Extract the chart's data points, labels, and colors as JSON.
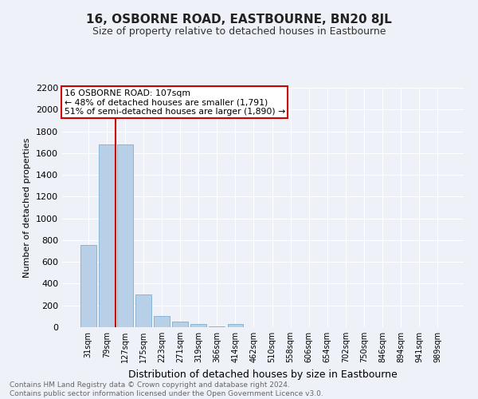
{
  "title": "16, OSBORNE ROAD, EASTBOURNE, BN20 8JL",
  "subtitle": "Size of property relative to detached houses in Eastbourne",
  "xlabel": "Distribution of detached houses by size in Eastbourne",
  "ylabel": "Number of detached properties",
  "categories": [
    "31sqm",
    "79sqm",
    "127sqm",
    "175sqm",
    "223sqm",
    "271sqm",
    "319sqm",
    "366sqm",
    "414sqm",
    "462sqm",
    "510sqm",
    "558sqm",
    "606sqm",
    "654sqm",
    "702sqm",
    "750sqm",
    "846sqm",
    "894sqm",
    "941sqm",
    "989sqm"
  ],
  "values": [
    755,
    1680,
    1680,
    300,
    105,
    55,
    30,
    5,
    28,
    2,
    0,
    0,
    0,
    0,
    0,
    0,
    0,
    0,
    0,
    0
  ],
  "bar_color": "#b8cfe8",
  "bar_edge_color": "#7aafd4",
  "ylim": [
    0,
    2200
  ],
  "yticks": [
    0,
    200,
    400,
    600,
    800,
    1000,
    1200,
    1400,
    1600,
    1800,
    2000,
    2200
  ],
  "red_line_x": 1.5,
  "red_line_color": "#cc0000",
  "annotation_line1": "16 OSBORNE ROAD: 107sqm",
  "annotation_line2": "← 48% of detached houses are smaller (1,791)",
  "annotation_line3": "51% of semi-detached houses are larger (1,890) →",
  "annotation_box_color": "#cc0000",
  "background_color": "#eef2f8",
  "grid_color": "#ffffff",
  "footer_line1": "Contains HM Land Registry data © Crown copyright and database right 2024.",
  "footer_line2": "Contains public sector information licensed under the Open Government Licence v3.0."
}
